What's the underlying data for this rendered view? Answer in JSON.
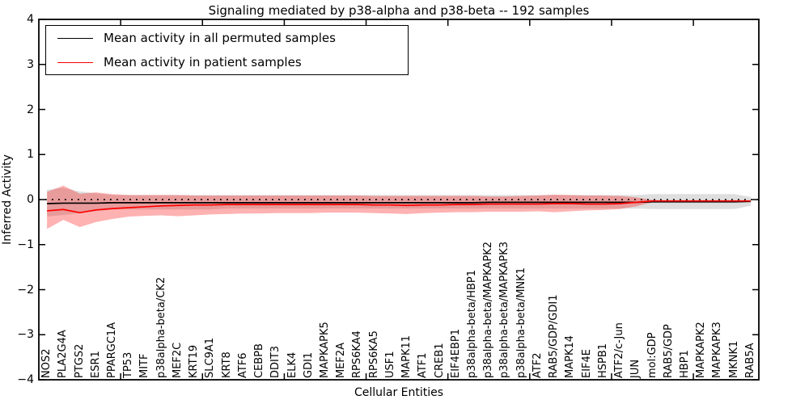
{
  "chart_data": {
    "type": "line",
    "title": "Signaling mediated by p38-alpha and p38-beta -- 192 samples",
    "xlabel": "Cellular Entities",
    "ylabel": "Inferred Activity",
    "ylim": [
      -4,
      4
    ],
    "yticks_display": [
      4,
      3,
      2,
      1,
      0,
      -1,
      -2,
      -3,
      -4
    ],
    "x_tick_interval": 5,
    "grid": false,
    "legend_position": "upper left",
    "zero_line": {
      "y": 0,
      "style": "dotted",
      "color": "#000000"
    },
    "categories": [
      "NOS2",
      "PLA2G4A",
      "PTGS2",
      "ESR1",
      "PPARGC1A",
      "TP53",
      "MITF",
      "p38alpha-beta/CK2",
      "MEF2C",
      "KRT19",
      "SLC9A1",
      "KRT8",
      "ATF6",
      "CEBPB",
      "DDIT3",
      "ELK4",
      "GDI1",
      "MAPKAPK5",
      "MEF2A",
      "RPS6KA4",
      "RPS6KA5",
      "USF1",
      "MAPK11",
      "ATF1",
      "CREB1",
      "EIF4EBP1",
      "p38alpha-beta/HBP1",
      "p38alpha-beta/MAPKAPK2",
      "p38alpha-beta/MAPKAPK3",
      "p38alpha-beta/MNK1",
      "ATF2",
      "RAB5/GDP/GDI1",
      "MAPK14",
      "EIF4E",
      "HSPB1",
      "ATF2/c-Jun",
      "JUN",
      "mol:GDP",
      "RAB5/GDP",
      "HBP1",
      "MAPKAPK2",
      "MAPKAPK3",
      "MKNK1",
      "RAB5A"
    ],
    "series": [
      {
        "name": "Mean activity in all permuted samples",
        "color": "#000000",
        "band_color": "#000000",
        "band_opacity": 0.13,
        "values": [
          -0.09,
          -0.08,
          -0.08,
          -0.08,
          -0.07,
          -0.07,
          -0.07,
          -0.07,
          -0.07,
          -0.07,
          -0.07,
          -0.07,
          -0.07,
          -0.07,
          -0.07,
          -0.07,
          -0.07,
          -0.07,
          -0.07,
          -0.07,
          -0.07,
          -0.07,
          -0.07,
          -0.07,
          -0.07,
          -0.07,
          -0.07,
          -0.06,
          -0.06,
          -0.06,
          -0.06,
          -0.06,
          -0.06,
          -0.06,
          -0.06,
          -0.06,
          -0.06,
          -0.05,
          -0.05,
          -0.05,
          -0.05,
          -0.05,
          -0.05,
          -0.04
        ],
        "band_upper": [
          0.22,
          0.26,
          0.18,
          0.14,
          0.1,
          0.1,
          0.1,
          0.1,
          0.1,
          0.1,
          0.1,
          0.1,
          0.1,
          0.1,
          0.1,
          0.1,
          0.1,
          0.1,
          0.1,
          0.1,
          0.1,
          0.1,
          0.1,
          0.1,
          0.1,
          0.1,
          0.1,
          0.1,
          0.1,
          0.1,
          0.1,
          0.1,
          0.1,
          0.1,
          0.1,
          0.1,
          0.1,
          0.12,
          0.12,
          0.12,
          0.12,
          0.12,
          0.12,
          0.06
        ],
        "band_lower": [
          -0.38,
          -0.34,
          -0.3,
          -0.26,
          -0.22,
          -0.22,
          -0.22,
          -0.22,
          -0.22,
          -0.22,
          -0.22,
          -0.2,
          -0.2,
          -0.2,
          -0.2,
          -0.2,
          -0.2,
          -0.2,
          -0.2,
          -0.2,
          -0.2,
          -0.2,
          -0.2,
          -0.2,
          -0.2,
          -0.2,
          -0.2,
          -0.2,
          -0.2,
          -0.2,
          -0.2,
          -0.2,
          -0.2,
          -0.2,
          -0.2,
          -0.2,
          -0.2,
          -0.21,
          -0.21,
          -0.21,
          -0.21,
          -0.21,
          -0.21,
          -0.14
        ]
      },
      {
        "name": "Mean activity in patient samples",
        "color": "#ff0000",
        "band_color": "#ff0000",
        "band_opacity": 0.3,
        "values": [
          -0.25,
          -0.22,
          -0.29,
          -0.23,
          -0.2,
          -0.18,
          -0.16,
          -0.14,
          -0.13,
          -0.12,
          -0.12,
          -0.11,
          -0.11,
          -0.11,
          -0.11,
          -0.11,
          -0.11,
          -0.11,
          -0.11,
          -0.11,
          -0.12,
          -0.12,
          -0.13,
          -0.12,
          -0.12,
          -0.11,
          -0.11,
          -0.1,
          -0.1,
          -0.1,
          -0.1,
          -0.09,
          -0.09,
          -0.1,
          -0.1,
          -0.09,
          -0.06,
          -0.03,
          -0.03,
          -0.03,
          -0.03,
          -0.03,
          -0.03,
          -0.03
        ],
        "band_upper": [
          0.17,
          0.31,
          0.13,
          0.16,
          0.12,
          0.1,
          0.1,
          0.1,
          0.1,
          0.09,
          0.09,
          0.09,
          0.09,
          0.09,
          0.09,
          0.09,
          0.09,
          0.09,
          0.09,
          0.09,
          0.08,
          0.08,
          0.08,
          0.08,
          0.08,
          0.08,
          0.08,
          0.07,
          0.07,
          0.08,
          0.09,
          0.11,
          0.1,
          0.09,
          0.09,
          0.08,
          0.05,
          -0.01,
          -0.03,
          -0.03,
          -0.03,
          -0.03,
          -0.03,
          -0.03
        ],
        "band_lower": [
          -0.65,
          -0.45,
          -0.61,
          -0.5,
          -0.43,
          -0.38,
          -0.36,
          -0.35,
          -0.37,
          -0.35,
          -0.33,
          -0.32,
          -0.31,
          -0.31,
          -0.3,
          -0.3,
          -0.3,
          -0.29,
          -0.29,
          -0.29,
          -0.3,
          -0.31,
          -0.32,
          -0.3,
          -0.29,
          -0.28,
          -0.28,
          -0.27,
          -0.27,
          -0.27,
          -0.26,
          -0.28,
          -0.26,
          -0.24,
          -0.23,
          -0.21,
          -0.15,
          -0.06,
          -0.03,
          -0.03,
          -0.03,
          -0.03,
          -0.03,
          -0.03
        ]
      }
    ]
  }
}
